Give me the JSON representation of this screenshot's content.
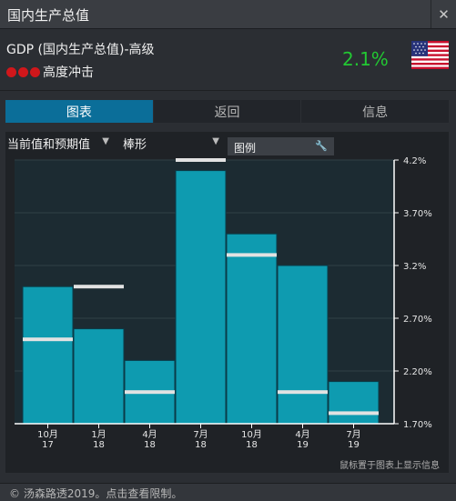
{
  "window": {
    "title": "国内生产总值",
    "close_label": "✕"
  },
  "indicator": {
    "name": "GDP (国内生产总值)-高级",
    "impact_label": "高度冲击",
    "change": "2.1%",
    "change_color": "#22c832",
    "impact_color": "#d0171b",
    "flag_icon": "us-flag-icon"
  },
  "tabs": [
    {
      "label": "图表",
      "active": true
    },
    {
      "label": "返回",
      "active": false
    },
    {
      "label": "信息",
      "active": false
    }
  ],
  "controls": {
    "series_select": "当前值和预期值",
    "chart_type_select": "棒形",
    "legend_label": "图例"
  },
  "chart_hint": "鼠标置于图表上显示信息",
  "footer": {
    "copyright": "© 汤森路透2019。点击查看限制。"
  },
  "chart_data": {
    "type": "bar",
    "categories": [
      "10月\n17",
      "1月\n18",
      "4月\n18",
      "7月\n18",
      "10月\n18",
      "4月\n19",
      "7月\n19"
    ],
    "series": [
      {
        "values": [
          3.0,
          2.6,
          2.3,
          4.1,
          3.5,
          3.2,
          2.1
        ],
        "color": "#0e9bb0"
      },
      {
        "values": [
          2.5,
          3.0,
          2.0,
          4.2,
          3.3,
          2.0,
          1.8
        ],
        "color": "#e2e2e2"
      }
    ],
    "ylim": [
      1.7,
      4.2
    ],
    "yticks": [
      "1.70%",
      "2.20%",
      "2.70%",
      "3.2%",
      "3.70%",
      "4.2%"
    ],
    "grid": true
  }
}
